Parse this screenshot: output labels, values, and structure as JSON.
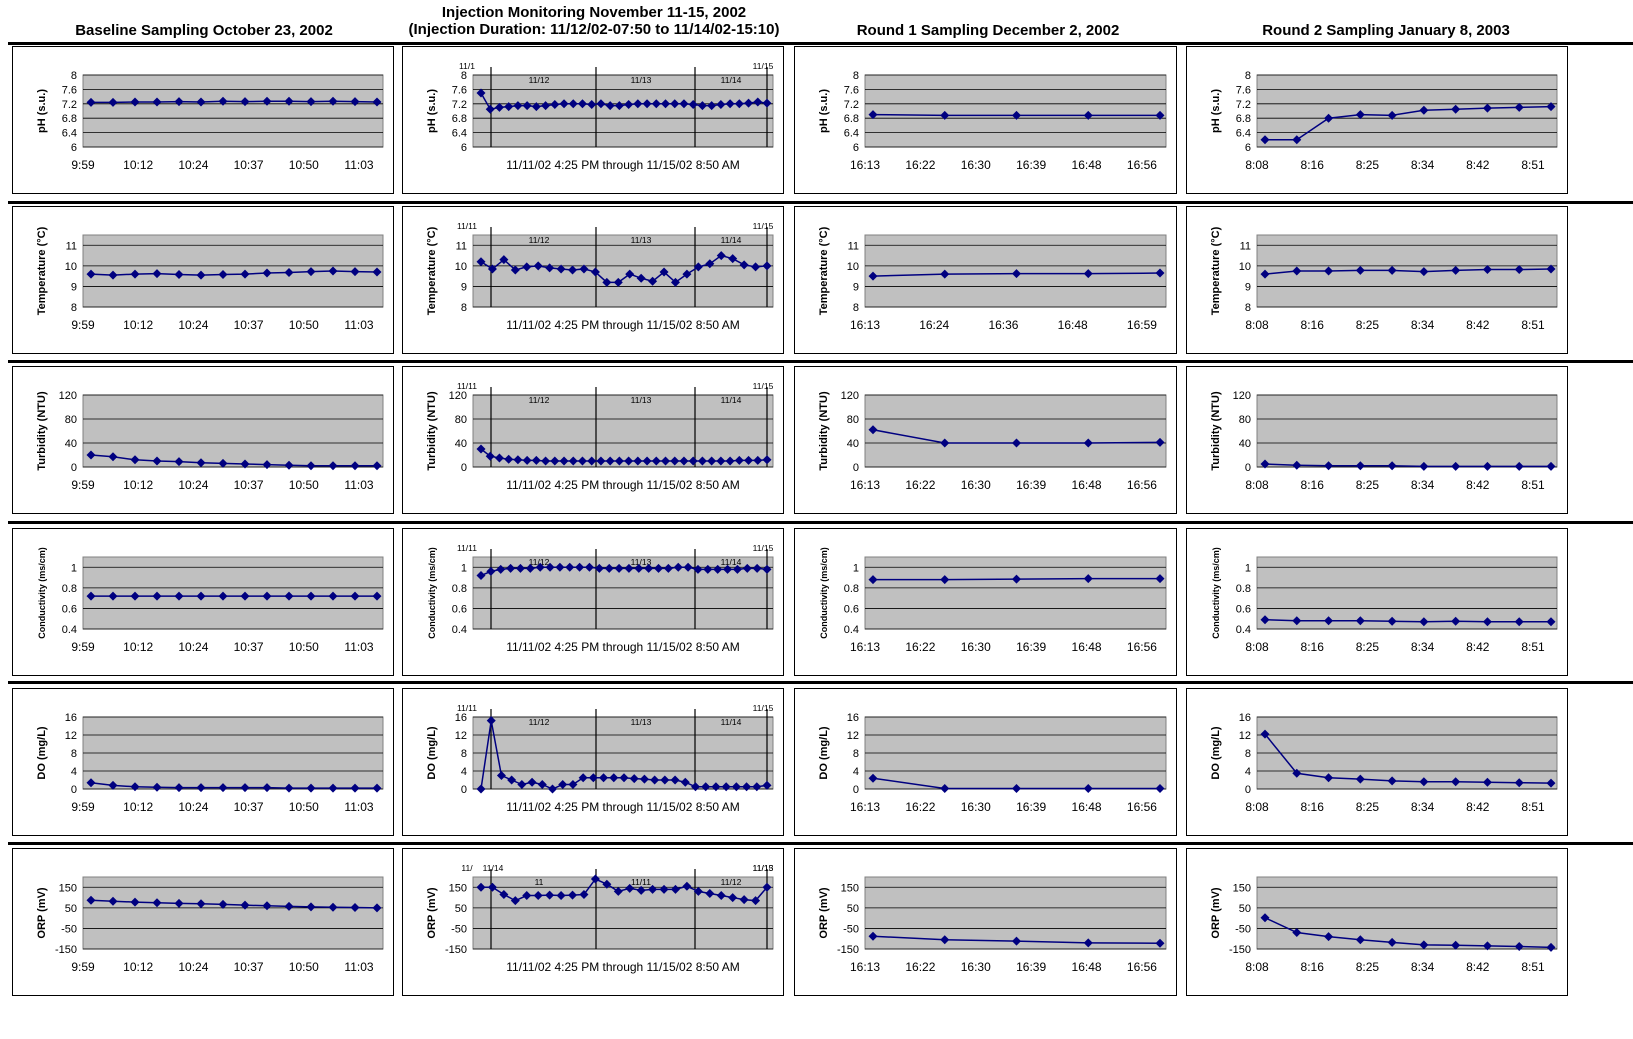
{
  "headers": [
    {
      "lines": [
        "Baseline Sampling  October 23, 2002"
      ]
    },
    {
      "lines": [
        "Injection Monitoring November 11-15, 2002",
        "(Injection Duration: 11/12/02-07:50 to 11/14/02-15:10)"
      ]
    },
    {
      "lines": [
        "Round 1 Sampling  December 2, 2002"
      ]
    },
    {
      "lines": [
        "Round 2 Sampling  January 8, 2003"
      ]
    }
  ],
  "rows": [
    {
      "ylabel": "pH (s.u.)",
      "ylim": [
        6,
        8
      ],
      "yticks": [
        "8",
        "7.6",
        "7.2",
        "6.8",
        "6.4",
        "6"
      ]
    },
    {
      "ylabel": "Temperature (°C)",
      "ylim": [
        8,
        11.5
      ],
      "yticks": [
        "11",
        "10",
        "9",
        "8"
      ]
    },
    {
      "ylabel": "Turbidity (NTU)",
      "ylim": [
        0,
        120
      ],
      "yticks": [
        "120",
        "80",
        "40",
        "0"
      ]
    },
    {
      "ylabel": "Conductivity (ms/cm)",
      "ylim": [
        0.4,
        1.1
      ],
      "yticks": [
        "1",
        "0.8",
        "0.6",
        "0.4"
      ]
    },
    {
      "ylabel": "DO (mg/L)",
      "ylim": [
        0,
        16
      ],
      "yticks": [
        "16",
        "12",
        "8",
        "4",
        "0"
      ]
    },
    {
      "ylabel": "ORP (mV)",
      "ylim": [
        -150,
        200
      ],
      "yticks": [
        "150",
        "50",
        "-50",
        "-150"
      ]
    }
  ],
  "chart_data": [
    {
      "type": "line",
      "xlabels": [
        "9:59",
        "10:12",
        "10:24",
        "10:37",
        "10:50",
        "11:03"
      ],
      "ylabel": "pH (s.u.)",
      "values": [
        7.24,
        7.24,
        7.25,
        7.25,
        7.26,
        7.25,
        7.27,
        7.26,
        7.27,
        7.27,
        7.26,
        7.27,
        7.26,
        7.25
      ]
    },
    {
      "type": "line",
      "xlabels": [
        "11/11/02 4:25 PM through 11/15/02 8:50 AM"
      ],
      "ylabel": "pH (s.u.)",
      "day_labels": [
        "11/1",
        "11/12",
        "11/13",
        "11/14",
        "11/15"
      ],
      "values": [
        7.5,
        7.05,
        7.1,
        7.12,
        7.15,
        7.15,
        7.12,
        7.15,
        7.18,
        7.2,
        7.2,
        7.2,
        7.18,
        7.2,
        7.15,
        7.15,
        7.18,
        7.2,
        7.2,
        7.2,
        7.2,
        7.2,
        7.2,
        7.18,
        7.15,
        7.15,
        7.18,
        7.2,
        7.2,
        7.22,
        7.25,
        7.22
      ]
    },
    {
      "type": "line",
      "xlabels": [
        "16:13",
        "16:22",
        "16:30",
        "16:39",
        "16:48",
        "16:56"
      ],
      "ylabel": "pH (s.u.)",
      "values": [
        6.9,
        6.88,
        6.88,
        6.88,
        6.88
      ]
    },
    {
      "type": "line",
      "xlabels": [
        "8:08",
        "8:16",
        "8:25",
        "8:34",
        "8:42",
        "8:51"
      ],
      "ylabel": "pH (s.u.)",
      "values": [
        6.2,
        6.2,
        6.8,
        6.9,
        6.88,
        7.02,
        7.05,
        7.08,
        7.1,
        7.12
      ]
    },
    {
      "type": "line",
      "xlabels": [
        "9:59",
        "10:12",
        "10:24",
        "10:37",
        "10:50",
        "11:03"
      ],
      "ylabel": "Temperature (°C)",
      "values": [
        9.6,
        9.55,
        9.6,
        9.62,
        9.58,
        9.55,
        9.58,
        9.6,
        9.65,
        9.68,
        9.72,
        9.75,
        9.72,
        9.7
      ]
    },
    {
      "type": "line",
      "xlabels": [
        "11/11/02 4:25 PM through 11/15/02 8:50 AM"
      ],
      "ylabel": "Temperature (°C)",
      "day_labels": [
        "11/11",
        "11/12",
        "11/13",
        "11/14",
        "11/15"
      ],
      "values": [
        10.2,
        9.85,
        10.3,
        9.8,
        9.95,
        10.0,
        9.9,
        9.85,
        9.8,
        9.85,
        9.7,
        9.2,
        9.2,
        9.6,
        9.4,
        9.25,
        9.7,
        9.2,
        9.6,
        9.95,
        10.1,
        10.5,
        10.35,
        10.05,
        9.95,
        10.0
      ]
    },
    {
      "type": "line",
      "xlabels": [
        "16:13",
        "16:24",
        "16:36",
        "16:48",
        "16:59"
      ],
      "ylabel": "Temperature (°C)",
      "values": [
        9.5,
        9.6,
        9.62,
        9.62,
        9.65
      ]
    },
    {
      "type": "line",
      "xlabels": [
        "8:08",
        "8:16",
        "8:25",
        "8:34",
        "8:42",
        "8:51"
      ],
      "ylabel": "Temperature (°C)",
      "values": [
        9.6,
        9.75,
        9.75,
        9.78,
        9.78,
        9.72,
        9.78,
        9.82,
        9.82,
        9.85
      ]
    },
    {
      "type": "line",
      "xlabels": [
        "9:59",
        "10:12",
        "10:24",
        "10:37",
        "10:50",
        "11:03"
      ],
      "ylabel": "Turbidity (NTU)",
      "values": [
        20,
        17,
        12,
        10,
        9,
        7,
        6,
        5,
        4,
        3,
        2,
        2,
        2,
        2
      ]
    },
    {
      "type": "line",
      "xlabels": [
        "11/11/02 4:25 PM through 11/15/02 8:50 AM"
      ],
      "ylabel": "Turbidity (NTU)",
      "day_labels": [
        "11/11",
        "11/12",
        "11/13",
        "11/14",
        "11/15"
      ],
      "values": [
        30,
        18,
        15,
        13,
        12,
        11,
        11,
        10,
        10,
        10,
        10,
        10,
        10,
        10,
        10,
        10,
        10,
        10,
        10,
        10,
        10,
        10,
        10,
        10,
        10,
        10,
        10,
        10,
        11,
        11,
        11,
        12
      ]
    },
    {
      "type": "line",
      "xlabels": [
        "16:13",
        "16:22",
        "16:30",
        "16:39",
        "16:48",
        "16:56"
      ],
      "ylabel": "Turbidity (NTU)",
      "values": [
        62,
        40,
        40,
        40,
        41
      ]
    },
    {
      "type": "line",
      "xlabels": [
        "8:08",
        "8:16",
        "8:25",
        "8:34",
        "8:42",
        "8:51"
      ],
      "ylabel": "Turbidity (NTU)",
      "values": [
        5,
        3,
        2,
        2,
        2,
        1,
        1,
        1,
        1,
        1
      ]
    },
    {
      "type": "line",
      "xlabels": [
        "9:59",
        "10:12",
        "10:24",
        "10:37",
        "10:50",
        "11:03"
      ],
      "ylabel": "Conductivity (ms/cm)",
      "values": [
        0.72,
        0.72,
        0.72,
        0.72,
        0.72,
        0.72,
        0.72,
        0.72,
        0.72,
        0.72,
        0.72,
        0.72,
        0.72,
        0.72
      ]
    },
    {
      "type": "line",
      "xlabels": [
        "11/11/02 4:25 PM through 11/15/02 8:50 AM"
      ],
      "ylabel": "Conductivity (ms/cm)",
      "day_labels": [
        "11/11",
        "11/12",
        "11/13",
        "11/14",
        "11/15"
      ],
      "values": [
        0.92,
        0.96,
        0.98,
        0.99,
        0.99,
        0.99,
        1.0,
        1.0,
        1.0,
        1.0,
        1.0,
        1.0,
        0.99,
        0.99,
        0.99,
        0.99,
        0.99,
        0.99,
        0.99,
        0.99,
        1.0,
        1.0,
        0.98,
        0.98,
        0.98,
        0.98,
        0.98,
        0.99,
        0.99,
        0.98
      ]
    },
    {
      "type": "line",
      "xlabels": [
        "16:13",
        "16:22",
        "16:30",
        "16:39",
        "16:48",
        "16:56"
      ],
      "ylabel": "Conductivity (ms/cm)",
      "values": [
        0.88,
        0.88,
        0.885,
        0.89,
        0.89
      ]
    },
    {
      "type": "line",
      "xlabels": [
        "8:08",
        "8:16",
        "8:25",
        "8:34",
        "8:42",
        "8:51"
      ],
      "ylabel": "Conductivity (ms/cm)",
      "values": [
        0.49,
        0.48,
        0.48,
        0.48,
        0.475,
        0.47,
        0.475,
        0.47,
        0.47,
        0.47
      ]
    },
    {
      "type": "line",
      "xlabels": [
        "9:59",
        "10:12",
        "10:24",
        "10:37",
        "10:50",
        "11:03"
      ],
      "ylabel": "DO (mg/L)",
      "values": [
        1.4,
        0.8,
        0.5,
        0.4,
        0.3,
        0.3,
        0.3,
        0.3,
        0.3,
        0.2,
        0.2,
        0.2,
        0.2,
        0.2
      ]
    },
    {
      "type": "line",
      "xlabels": [
        "11/11/02 4:25 PM through 11/15/02 8:50 AM"
      ],
      "ylabel": "DO (mg/L)",
      "day_labels": [
        "11/11",
        "11/12",
        "11/13",
        "11/14",
        "11/15"
      ],
      "values": [
        0,
        15.2,
        3.0,
        2.0,
        1.0,
        1.5,
        1.0,
        0,
        1.0,
        1.0,
        2.5,
        2.5,
        2.5,
        2.5,
        2.5,
        2.3,
        2.2,
        2.0,
        2.0,
        2.0,
        1.5,
        0.5,
        0.5,
        0.5,
        0.5,
        0.5,
        0.5,
        0.5,
        0.8
      ]
    },
    {
      "type": "line",
      "xlabels": [
        "16:13",
        "16:22",
        "16:30",
        "16:39",
        "16:48",
        "16:56"
      ],
      "ylabel": "DO (mg/L)",
      "values": [
        2.4,
        0.1,
        0.1,
        0.1,
        0.1
      ]
    },
    {
      "type": "line",
      "xlabels": [
        "8:08",
        "8:16",
        "8:25",
        "8:34",
        "8:42",
        "8:51"
      ],
      "ylabel": "DO (mg/L)",
      "values": [
        12.2,
        3.5,
        2.5,
        2.2,
        1.8,
        1.6,
        1.6,
        1.5,
        1.4,
        1.3
      ]
    },
    {
      "type": "line",
      "xlabels": [
        "9:59",
        "10:12",
        "10:24",
        "10:37",
        "10:50",
        "11:03"
      ],
      "ylabel": "ORP (mV)",
      "values": [
        87,
        82,
        78,
        75,
        72,
        70,
        67,
        63,
        60,
        57,
        55,
        53,
        52,
        50
      ]
    },
    {
      "type": "line",
      "xlabels": [
        "11/11/02 4:25 PM through 11/15/02 8:50 AM"
      ],
      "ylabel": "ORP (mV)",
      "day_labels": [
        "11/",
        "11",
        "11/11",
        "11/12",
        "11/13",
        "11/14",
        "11/15"
      ],
      "values": [
        150,
        150,
        115,
        85,
        110,
        110,
        112,
        110,
        112,
        115,
        190,
        165,
        130,
        145,
        135,
        140,
        140,
        140,
        155,
        130,
        120,
        110,
        100,
        90,
        85,
        150
      ]
    },
    {
      "type": "line",
      "xlabels": [
        "16:13",
        "16:22",
        "16:30",
        "16:39",
        "16:48",
        "16:56"
      ],
      "ylabel": "ORP (mV)",
      "values": [
        -88,
        -105,
        -112,
        -120,
        -122
      ]
    },
    {
      "type": "line",
      "xlabels": [
        "8:08",
        "8:16",
        "8:25",
        "8:34",
        "8:42",
        "8:51"
      ],
      "ylabel": "ORP (mV)",
      "values": [
        2,
        -70,
        -90,
        -105,
        -118,
        -130,
        -132,
        -135,
        -138,
        -142
      ]
    }
  ]
}
